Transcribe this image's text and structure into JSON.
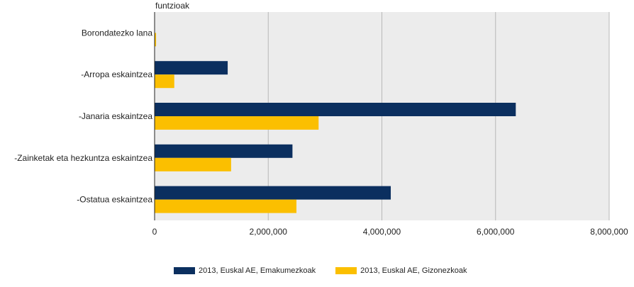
{
  "chart_data": {
    "type": "bar",
    "orientation": "horizontal",
    "title": "funtzioak",
    "categories": [
      "Borondatezko lana",
      "-Arropa eskaintzea",
      "-Janaria eskaintzea",
      "-Zainketak eta hezkuntza eskaintzea",
      "-Ostatua eskaintzea"
    ],
    "series": [
      {
        "name": "2013, Euskal AE, Emakumezkoak",
        "color": "#0b2f5f",
        "values": [
          0,
          1280000,
          6350000,
          2420000,
          4150000
        ]
      },
      {
        "name": "2013, Euskal AE, Gizonezkoak",
        "color": "#fbbf00",
        "values": [
          20000,
          340000,
          2880000,
          1340000,
          2490000
        ]
      }
    ],
    "xlim": [
      0,
      8000000
    ],
    "xticks": [
      0,
      2000000,
      4000000,
      6000000,
      8000000
    ],
    "xtick_labels": [
      "0",
      "2,000,000",
      "4,000,000",
      "6,000,000",
      "8,000,000"
    ],
    "grid": true,
    "legend_position": "bottom"
  }
}
